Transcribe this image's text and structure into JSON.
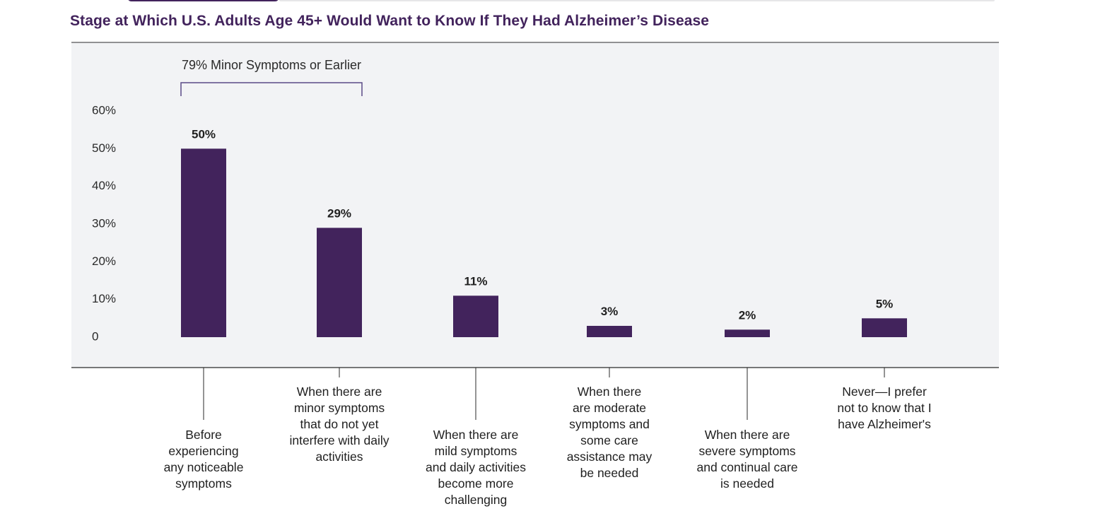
{
  "title": "Stage at Which U.S. Adults Age 45+ Would Want to Know If They Had Alzheimer’s Disease",
  "colors": {
    "bar": "#42235c",
    "plot_bg": "#f2f3f5",
    "title": "#42235c",
    "bracket": "#5a4a86"
  },
  "chart_data": {
    "type": "bar",
    "title": "Stage at Which U.S. Adults Age 45+ Would Want to Know If They Had Alzheimer’s Disease",
    "xlabel": "",
    "ylabel": "",
    "ylim": [
      0,
      60
    ],
    "yticks": [
      "0",
      "10%",
      "20%",
      "30%",
      "40%",
      "50%",
      "60%"
    ],
    "grid": false,
    "categories": [
      [
        "Before",
        "experiencing",
        "any noticeable",
        "symptoms"
      ],
      [
        "When there are",
        "minor symptoms",
        "that do not yet",
        "interfere with daily",
        "activities"
      ],
      [
        "When there are",
        "mild symptoms",
        "and daily activities",
        "become more",
        "challenging"
      ],
      [
        "When there",
        "are moderate",
        "symptoms and",
        "some care",
        "assistance may",
        "be needed"
      ],
      [
        "When there are",
        "severe symptoms",
        "and continual care",
        "is needed"
      ],
      [
        "Never—I prefer",
        "not to know that I",
        "have Alzheimer's"
      ]
    ],
    "values": [
      50,
      29,
      11,
      3,
      2,
      5
    ],
    "value_labels": [
      "50%",
      "29%",
      "11%",
      "3%",
      "2%",
      "5%"
    ],
    "annotation": {
      "text": "79% Minor Symptoms or Earlier",
      "spans": [
        0,
        1
      ]
    }
  }
}
